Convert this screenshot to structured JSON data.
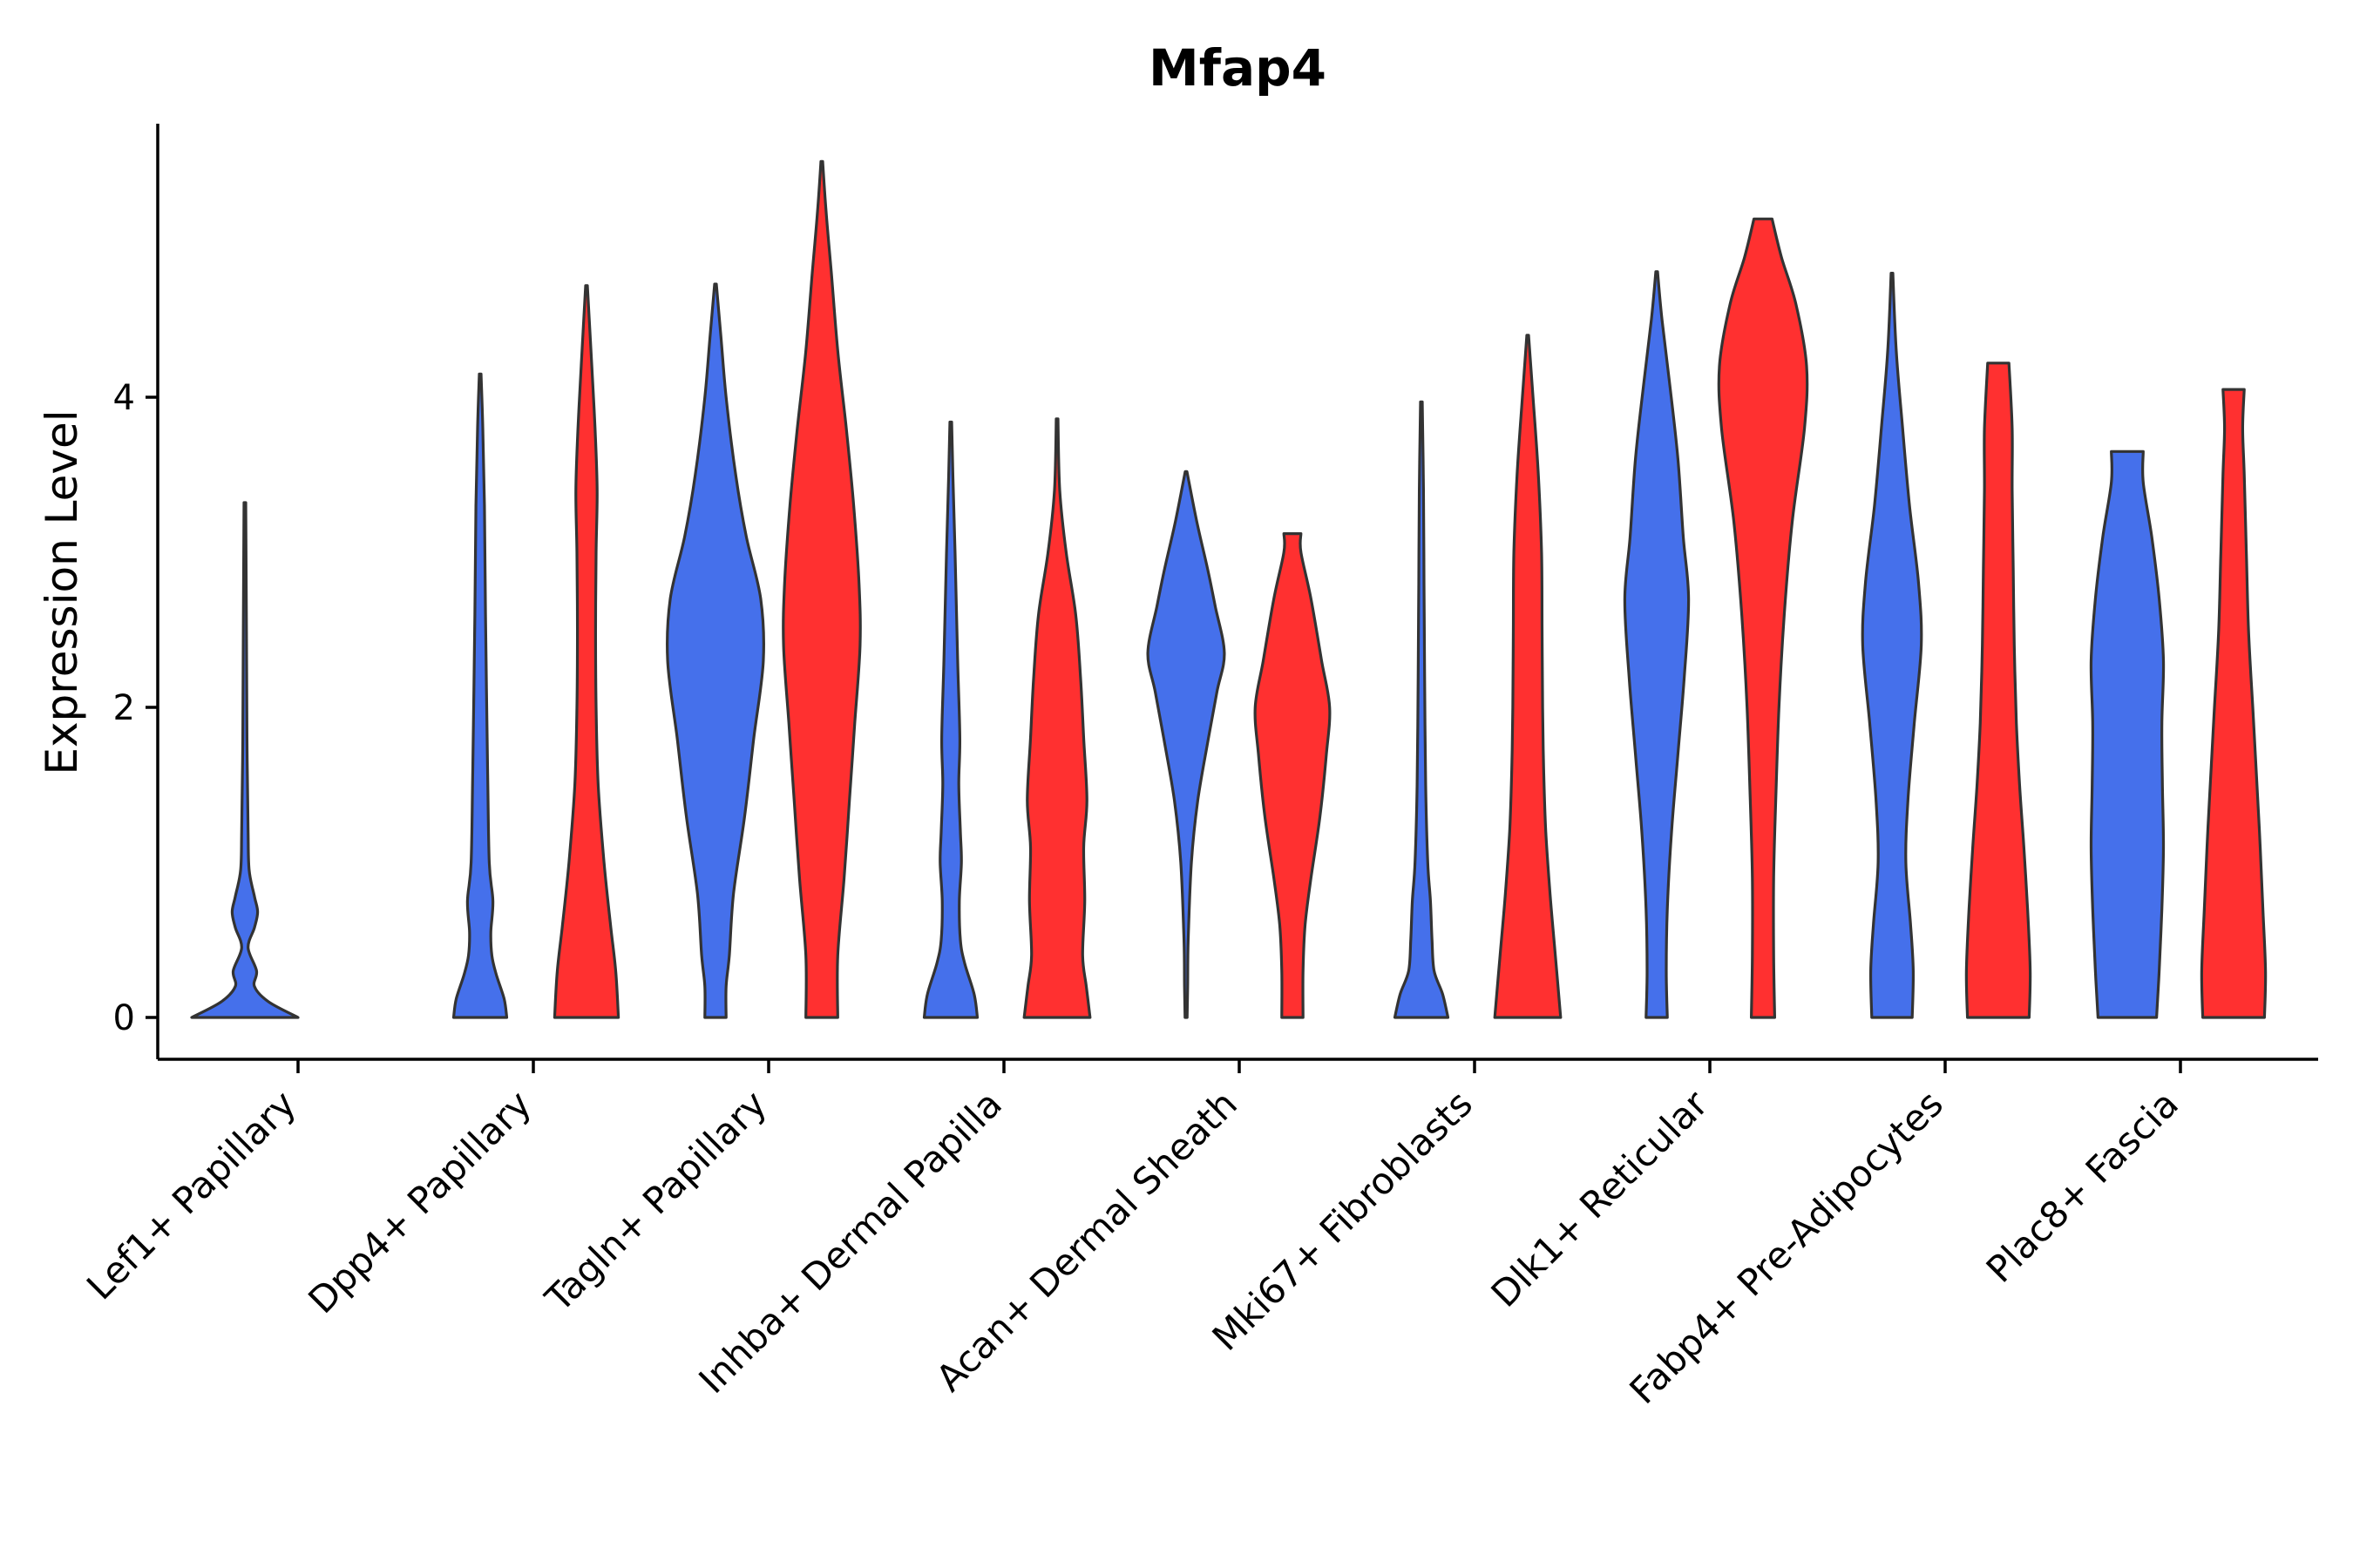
{
  "chart_data": {
    "type": "violin",
    "title": "Mfap4",
    "xlabel": "",
    "ylabel": "Expression Level",
    "ylim": [
      -0.28,
      5.8
    ],
    "yticks": [
      0,
      2,
      4
    ],
    "grid": false,
    "legend": "none",
    "colors": {
      "group_a": "#4570EB",
      "group_b": "#FF3030"
    },
    "categories": [
      "Lef1+ Papillary",
      "Dpp4+ Papillary",
      "Tagln+ Papillary",
      "Inhba+ Dermal Papilla",
      "Acan+ Dermal Sheath",
      "Mki67+ Fibroblasts",
      "Dlk1+ Reticular",
      "Fabp4+ Pre-Adipocytes",
      "Plac8+ Fascia"
    ],
    "series": [
      {
        "name": "group_a",
        "color": "#4570EB",
        "violins": [
          {
            "max": 3.32,
            "profile": [
              [
                0,
                1.0
              ],
              [
                0.1,
                0.45
              ],
              [
                0.2,
                0.18
              ],
              [
                0.3,
                0.22
              ],
              [
                0.45,
                0.06
              ],
              [
                0.58,
                0.18
              ],
              [
                0.68,
                0.24
              ],
              [
                0.78,
                0.18
              ],
              [
                0.95,
                0.08
              ],
              [
                1.2,
                0.06
              ],
              [
                1.8,
                0.04
              ],
              [
                2.5,
                0.03
              ],
              [
                3.32,
                0.01
              ]
            ]
          },
          {
            "max": 4.15,
            "profile": [
              [
                0,
                0.5
              ],
              [
                0.12,
                0.45
              ],
              [
                0.28,
                0.3
              ],
              [
                0.4,
                0.22
              ],
              [
                0.55,
                0.2
              ],
              [
                0.75,
                0.24
              ],
              [
                1.0,
                0.17
              ],
              [
                1.6,
                0.14
              ],
              [
                2.6,
                0.1
              ],
              [
                3.3,
                0.08
              ],
              [
                3.8,
                0.05
              ],
              [
                4.15,
                0.01
              ]
            ]
          },
          {
            "max": 4.73,
            "profile": [
              [
                0,
                0.2
              ],
              [
                0.2,
                0.2
              ],
              [
                0.4,
                0.26
              ],
              [
                0.8,
                0.34
              ],
              [
                1.3,
                0.55
              ],
              [
                1.8,
                0.72
              ],
              [
                2.3,
                0.9
              ],
              [
                2.7,
                0.85
              ],
              [
                3.1,
                0.58
              ],
              [
                3.5,
                0.38
              ],
              [
                4.0,
                0.2
              ],
              [
                4.4,
                0.1
              ],
              [
                4.73,
                0.01
              ]
            ]
          },
          {
            "max": 3.84,
            "profile": [
              [
                0,
                0.5
              ],
              [
                0.15,
                0.44
              ],
              [
                0.35,
                0.26
              ],
              [
                0.5,
                0.18
              ],
              [
                0.75,
                0.16
              ],
              [
                1.0,
                0.2
              ],
              [
                1.2,
                0.18
              ],
              [
                1.5,
                0.15
              ],
              [
                1.8,
                0.17
              ],
              [
                2.3,
                0.13
              ],
              [
                3.0,
                0.08
              ],
              [
                3.5,
                0.04
              ],
              [
                3.84,
                0.01
              ]
            ]
          },
          {
            "max": 3.52,
            "profile": [
              [
                0,
                0.02
              ],
              [
                0.2,
                0.03
              ],
              [
                0.5,
                0.04
              ],
              [
                1.0,
                0.1
              ],
              [
                1.4,
                0.22
              ],
              [
                1.8,
                0.42
              ],
              [
                2.1,
                0.58
              ],
              [
                2.35,
                0.72
              ],
              [
                2.65,
                0.55
              ],
              [
                2.9,
                0.4
              ],
              [
                3.2,
                0.2
              ],
              [
                3.52,
                0.01
              ]
            ]
          },
          {
            "max": 3.97,
            "profile": [
              [
                0,
                0.5
              ],
              [
                0.15,
                0.4
              ],
              [
                0.3,
                0.24
              ],
              [
                0.5,
                0.2
              ],
              [
                0.75,
                0.17
              ],
              [
                1.0,
                0.12
              ],
              [
                1.5,
                0.08
              ],
              [
                2.2,
                0.06
              ],
              [
                2.8,
                0.05
              ],
              [
                3.4,
                0.04
              ],
              [
                3.97,
                0.01
              ]
            ]
          },
          {
            "max": 4.81,
            "profile": [
              [
                0,
                0.2
              ],
              [
                0.3,
                0.18
              ],
              [
                0.7,
                0.2
              ],
              [
                1.2,
                0.28
              ],
              [
                1.7,
                0.4
              ],
              [
                2.2,
                0.52
              ],
              [
                2.7,
                0.6
              ],
              [
                3.1,
                0.5
              ],
              [
                3.6,
                0.4
              ],
              [
                4.1,
                0.24
              ],
              [
                4.5,
                0.1
              ],
              [
                4.81,
                0.01
              ]
            ]
          },
          {
            "max": 4.8,
            "profile": [
              [
                0,
                0.38
              ],
              [
                0.3,
                0.4
              ],
              [
                0.6,
                0.35
              ],
              [
                1.0,
                0.26
              ],
              [
                1.4,
                0.3
              ],
              [
                1.9,
                0.42
              ],
              [
                2.4,
                0.55
              ],
              [
                2.8,
                0.5
              ],
              [
                3.3,
                0.33
              ],
              [
                3.8,
                0.2
              ],
              [
                4.3,
                0.08
              ],
              [
                4.8,
                0.01
              ]
            ]
          },
          {
            "max": 3.65,
            "profile": [
              [
                0,
                0.55
              ],
              [
                0.3,
                0.6
              ],
              [
                0.7,
                0.65
              ],
              [
                1.1,
                0.68
              ],
              [
                1.5,
                0.66
              ],
              [
                1.9,
                0.65
              ],
              [
                2.3,
                0.68
              ],
              [
                2.7,
                0.6
              ],
              [
                3.1,
                0.46
              ],
              [
                3.45,
                0.3
              ],
              [
                3.65,
                0.3
              ]
            ]
          }
        ]
      },
      {
        "name": "group_b",
        "color": "#FF3030",
        "violins": [
          null,
          {
            "max": 4.72,
            "profile": [
              [
                0,
                0.6
              ],
              [
                0.3,
                0.55
              ],
              [
                0.6,
                0.45
              ],
              [
                1.0,
                0.33
              ],
              [
                1.5,
                0.22
              ],
              [
                2.0,
                0.18
              ],
              [
                2.5,
                0.17
              ],
              [
                3.0,
                0.18
              ],
              [
                3.4,
                0.2
              ],
              [
                3.8,
                0.16
              ],
              [
                4.2,
                0.1
              ],
              [
                4.72,
                0.01
              ]
            ]
          },
          {
            "max": 5.52,
            "profile": [
              [
                0,
                0.3
              ],
              [
                0.4,
                0.3
              ],
              [
                0.9,
                0.42
              ],
              [
                1.4,
                0.52
              ],
              [
                1.9,
                0.62
              ],
              [
                2.4,
                0.72
              ],
              [
                2.8,
                0.7
              ],
              [
                3.3,
                0.6
              ],
              [
                3.8,
                0.46
              ],
              [
                4.3,
                0.3
              ],
              [
                4.8,
                0.18
              ],
              [
                5.2,
                0.08
              ],
              [
                5.52,
                0.01
              ]
            ]
          },
          {
            "max": 3.86,
            "profile": [
              [
                0,
                0.62
              ],
              [
                0.2,
                0.55
              ],
              [
                0.4,
                0.48
              ],
              [
                0.75,
                0.52
              ],
              [
                1.1,
                0.5
              ],
              [
                1.4,
                0.56
              ],
              [
                1.8,
                0.5
              ],
              [
                2.2,
                0.44
              ],
              [
                2.6,
                0.35
              ],
              [
                3.0,
                0.17
              ],
              [
                3.4,
                0.05
              ],
              [
                3.86,
                0.01
              ]
            ]
          },
          {
            "max": 3.12,
            "profile": [
              [
                0,
                0.2
              ],
              [
                0.3,
                0.2
              ],
              [
                0.6,
                0.24
              ],
              [
                0.9,
                0.35
              ],
              [
                1.3,
                0.52
              ],
              [
                1.7,
                0.64
              ],
              [
                2.0,
                0.7
              ],
              [
                2.3,
                0.55
              ],
              [
                2.7,
                0.35
              ],
              [
                3.0,
                0.16
              ],
              [
                3.12,
                0.16
              ]
            ]
          },
          {
            "max": 4.4,
            "profile": [
              [
                0,
                0.62
              ],
              [
                0.4,
                0.52
              ],
              [
                0.8,
                0.42
              ],
              [
                1.2,
                0.34
              ],
              [
                1.6,
                0.3
              ],
              [
                2.0,
                0.28
              ],
              [
                2.5,
                0.27
              ],
              [
                3.0,
                0.26
              ],
              [
                3.5,
                0.2
              ],
              [
                4.0,
                0.1
              ],
              [
                4.4,
                0.01
              ]
            ]
          },
          {
            "max": 5.15,
            "profile": [
              [
                0,
                0.22
              ],
              [
                0.4,
                0.2
              ],
              [
                0.9,
                0.2
              ],
              [
                1.4,
                0.24
              ],
              [
                2.0,
                0.3
              ],
              [
                2.6,
                0.4
              ],
              [
                3.2,
                0.55
              ],
              [
                3.8,
                0.78
              ],
              [
                4.2,
                0.82
              ],
              [
                4.6,
                0.62
              ],
              [
                4.9,
                0.35
              ],
              [
                5.15,
                0.17
              ]
            ]
          },
          {
            "max": 4.22,
            "profile": [
              [
                0,
                0.58
              ],
              [
                0.3,
                0.6
              ],
              [
                0.7,
                0.55
              ],
              [
                1.1,
                0.48
              ],
              [
                1.5,
                0.4
              ],
              [
                1.9,
                0.34
              ],
              [
                2.4,
                0.3
              ],
              [
                2.9,
                0.28
              ],
              [
                3.4,
                0.26
              ],
              [
                3.8,
                0.26
              ],
              [
                4.22,
                0.2
              ]
            ]
          },
          {
            "max": 4.05,
            "profile": [
              [
                0,
                0.58
              ],
              [
                0.3,
                0.6
              ],
              [
                0.7,
                0.55
              ],
              [
                1.1,
                0.5
              ],
              [
                1.5,
                0.44
              ],
              [
                2.0,
                0.36
              ],
              [
                2.5,
                0.28
              ],
              [
                3.0,
                0.24
              ],
              [
                3.5,
                0.2
              ],
              [
                3.8,
                0.17
              ],
              [
                4.05,
                0.2
              ]
            ]
          }
        ]
      }
    ]
  }
}
